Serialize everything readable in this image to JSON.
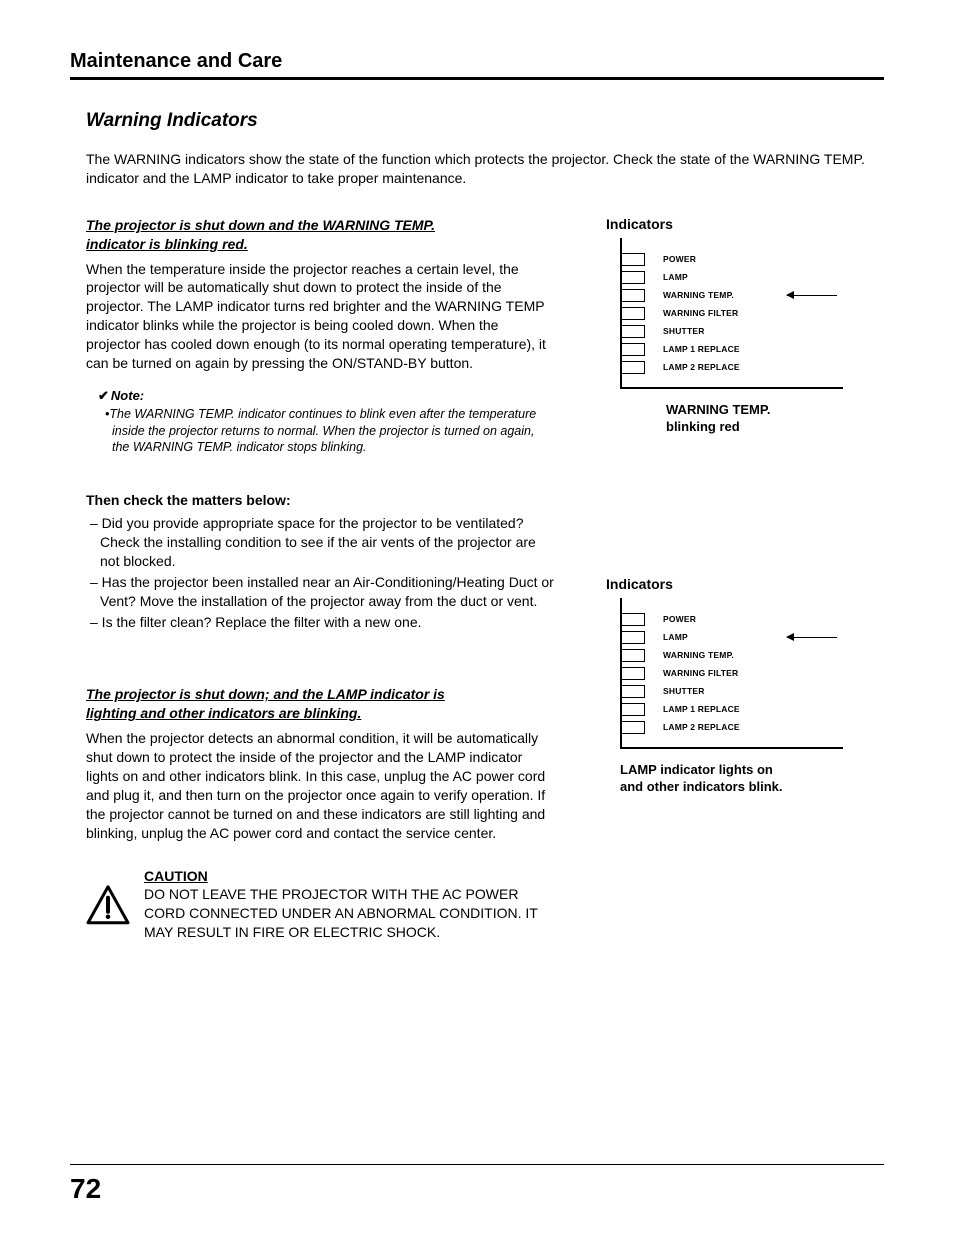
{
  "chapter": "Maintenance and Care",
  "section": "Warning Indicators",
  "intro": "The WARNING indicators show the state of the function which protects the projector. Check the state of the WARNING TEMP. indicator and the LAMP indicator to take proper maintenance.",
  "sub1a": "The projector is shut down and the WARNING TEMP.",
  "sub1b": "indicator is blinking red.",
  "para1": "When the temperature inside the projector reaches a certain level, the projector will be automatically shut down to protect the inside of the projector. The LAMP indicator turns red brighter and the WARNING TEMP indicator blinks while the projector is being cooled down. When the projector has cooled down enough (to its normal operating temperature), it can be turned on again by pressing the ON/STAND-BY button.",
  "note_hd": "Note:",
  "note_body": "•The WARNING TEMP. indicator continues to blink even after the temperature inside the projector returns to normal. When the projector is turned on again, the WARNING TEMP. indicator stops blinking.",
  "check_hd": "Then check the matters below:",
  "check1": "– Did you provide appropriate space for the projector to be ventilated? Check the installing condition to see if the air vents of the projector are not blocked.",
  "check2": "– Has the projector been installed near an Air-Conditioning/Heating Duct or Vent? Move the installation of the projector away from the duct or vent.",
  "check3": "– Is the filter clean? Replace the filter with a new one.",
  "sub2a": "The projector is shut down; and the LAMP indicator is",
  "sub2b": "lighting and other indicators are blinking.",
  "para2": "When the projector detects an abnormal condition, it will be automatically shut down to protect the inside of the projector and the LAMP indicator lights on and other indicators blink. In this case, unplug the AC power cord and plug it, and then turn on the projector once again to verify operation. If the projector cannot be turned on and these indicators are still lighting and blinking, unplug the AC power cord and contact the service center.",
  "caution": "CAUTION",
  "caution_body": "DO NOT LEAVE THE PROJECTOR WITH THE AC POWER CORD CONNECTED UNDER AN ABNORMAL CONDITION. IT MAY RESULT IN FIRE OR ELECTRIC SHOCK.",
  "ind_title": "Indicators",
  "leds": [
    "POWER",
    "LAMP",
    "WARNING TEMP.",
    "WARNING FILTER",
    "SHUTTER",
    "LAMP 1 REPLACE",
    "LAMP 2 REPLACE"
  ],
  "cap1a": "WARNING TEMP.",
  "cap1b": "blinking red",
  "cap2a": "LAMP indicator lights on",
  "cap2b": "and other indicators blink.",
  "pagenum": "72",
  "arrow1_idx": 2,
  "arrow2_idx": 1
}
